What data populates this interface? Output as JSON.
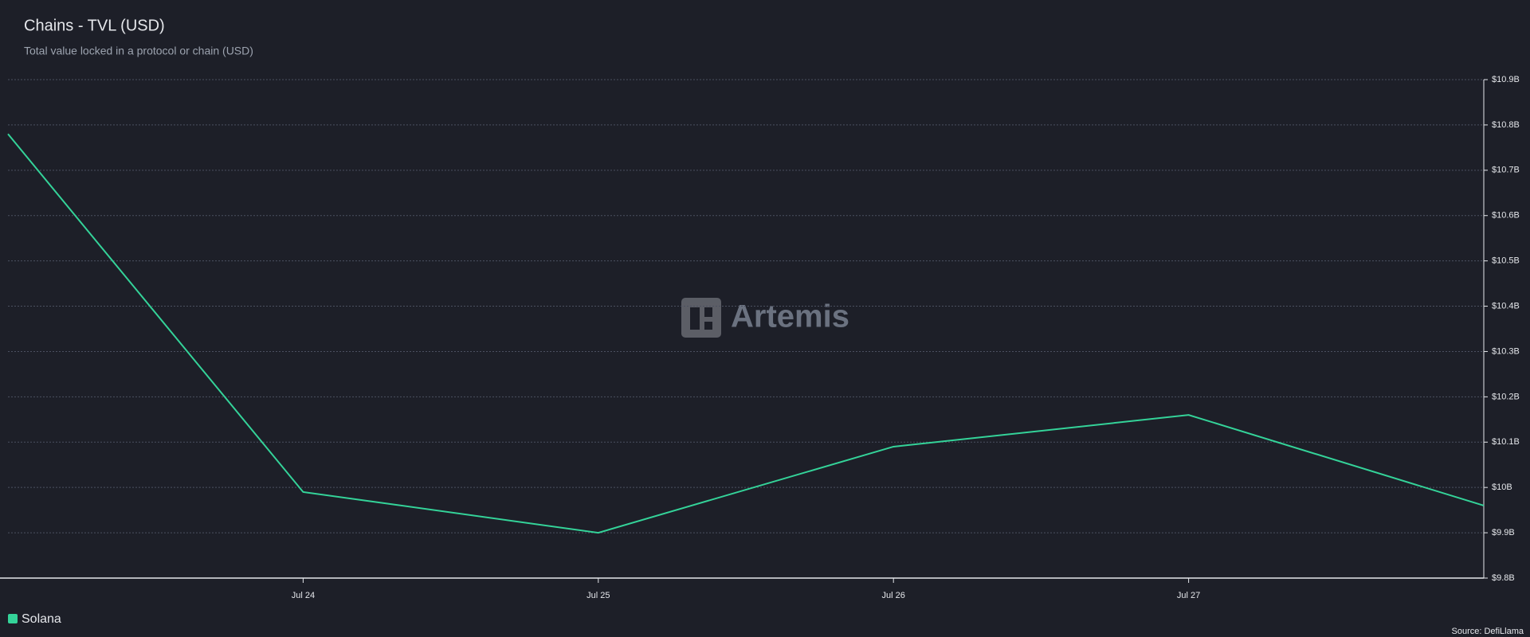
{
  "chart_data": {
    "type": "line",
    "title": "Chains - TVL (USD)",
    "subtitle": "Total value locked in a protocol or chain (USD)",
    "watermark": "Artemis",
    "source": "Source: DefiLlama",
    "categories": [
      null,
      "Jul 24",
      "Jul 25",
      "Jul 26",
      "Jul 27",
      null
    ],
    "series": [
      {
        "name": "Solana",
        "color": "#34d399",
        "values": [
          10.78,
          9.99,
          9.9,
          10.09,
          10.16,
          9.96
        ]
      }
    ],
    "ylim": [
      9.8,
      10.9
    ],
    "yticks": [
      {
        "value": 9.8,
        "label": "$9.8B"
      },
      {
        "value": 9.9,
        "label": "$9.9B"
      },
      {
        "value": 10,
        "label": "$10B"
      },
      {
        "value": 10.1,
        "label": "$10.1B"
      },
      {
        "value": 10.2,
        "label": "$10.2B"
      },
      {
        "value": 10.3,
        "label": "$10.3B"
      },
      {
        "value": 10.4,
        "label": "$10.4B"
      },
      {
        "value": 10.5,
        "label": "$10.5B"
      },
      {
        "value": 10.6,
        "label": "$10.6B"
      },
      {
        "value": 10.7,
        "label": "$10.7B"
      },
      {
        "value": 10.8,
        "label": "$10.8B"
      },
      {
        "value": 10.9,
        "label": "$10.9B"
      }
    ],
    "grid": true,
    "y_axis_side": "right"
  }
}
